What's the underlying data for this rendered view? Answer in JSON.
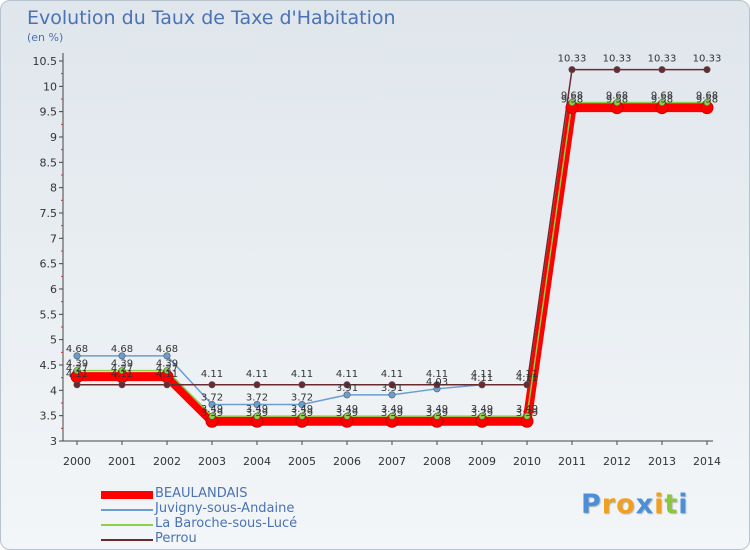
{
  "colors": {
    "title": "#4a72b4",
    "axis": "#444444",
    "tick_text": "#333333",
    "label_text": "#333333"
  },
  "chart_data": {
    "type": "line",
    "title": "Evolution du Taux de Taxe d'Habitation",
    "unit": "(en %)",
    "x": [
      "2000",
      "2001",
      "2002",
      "2003",
      "2004",
      "2005",
      "2006",
      "2007",
      "2008",
      "2009",
      "2010",
      "2011",
      "2012",
      "2013",
      "2014"
    ],
    "yticks": [
      "3",
      "3.5",
      "4",
      "4.5",
      "5",
      "5.5",
      "6",
      "6.5",
      "7",
      "7.5",
      "8",
      "8.5",
      "9",
      "9.5",
      "10",
      "10.5"
    ],
    "ylim": [
      3,
      10.5
    ],
    "series": [
      {
        "name": "BEAULANDAIS",
        "color": "#ff0000",
        "values": [
          4.27,
          4.27,
          4.27,
          3.39,
          3.39,
          3.39,
          3.39,
          3.39,
          3.39,
          3.39,
          3.39,
          9.58,
          9.58,
          9.58,
          9.58
        ],
        "labels": [
          "4.27",
          "4.27",
          "4.27",
          "3.39",
          "3.39",
          "3.39",
          "3.39",
          "3.39",
          "3.39",
          "3.39",
          "3.39",
          "9.58",
          "9.58",
          "9.58",
          "9.58"
        ]
      },
      {
        "name": "Juvigny-sous-Andaine",
        "color": "#6a9ed0",
        "values": [
          4.68,
          4.68,
          4.68,
          3.72,
          3.72,
          3.72,
          3.91,
          3.91,
          4.03,
          4.11,
          4.11,
          null,
          null,
          null,
          null
        ],
        "labels": [
          "4.68",
          "4.68",
          "4.68",
          "3.72",
          "3.72",
          "3.72",
          "3.91",
          "3.91",
          "4.03",
          "4.11",
          "4.11",
          null,
          null,
          null,
          null
        ]
      },
      {
        "name": "La Baroche-sous-Lucé",
        "color": "#8ad048",
        "values": [
          4.39,
          4.39,
          4.39,
          3.49,
          3.49,
          3.49,
          3.49,
          3.49,
          3.49,
          3.49,
          3.49,
          9.68,
          9.68,
          9.68,
          9.68
        ],
        "labels": [
          "4.39",
          "4.39",
          "4.39",
          "3.49",
          "3.49",
          "3.49",
          "3.49",
          "3.49",
          "3.49",
          "3.49",
          "3.49",
          "9.68",
          "9.68",
          "9.68",
          "9.68"
        ]
      },
      {
        "name": "Perrou",
        "color": "#6b2a30",
        "values": [
          4.11,
          4.11,
          4.11,
          4.11,
          4.11,
          4.11,
          4.11,
          4.11,
          4.11,
          4.11,
          4.11,
          10.33,
          10.33,
          10.33,
          10.33
        ],
        "labels": [
          "4.11",
          "4.11",
          "4.11",
          "4.11",
          "4.11",
          "4.11",
          "4.11",
          "4.11",
          "4.11",
          "4.11",
          "4.11",
          "10.33",
          "10.33",
          "10.33",
          "10.33"
        ]
      }
    ]
  },
  "logo": {
    "letters": [
      "P",
      "r",
      "o",
      "x",
      "i",
      "t",
      "i"
    ],
    "colors": [
      "#4d8fd6",
      "#f0a020",
      "#f0a020",
      "#4d8fd6",
      "#f0a020",
      "#8cc63f",
      "#4d8fd6"
    ]
  }
}
